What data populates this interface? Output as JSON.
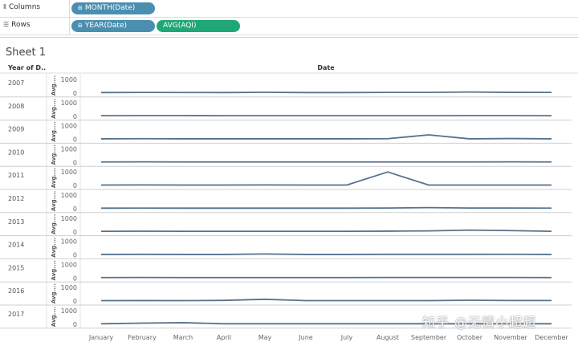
{
  "shelves": {
    "columns": {
      "label": "Columns",
      "pills": [
        {
          "text": "MONTH(Date)",
          "color": "#4a8fb0"
        }
      ]
    },
    "rows": {
      "label": "Rows",
      "pills": [
        {
          "text": "YEAR(Date)",
          "color": "#4a8fb0"
        },
        {
          "text": "AVG(AQI)",
          "color": "#1fa776"
        }
      ]
    }
  },
  "sheet_title": "Sheet 1",
  "watermark": "知乎 @无情小超超",
  "chart_data": {
    "type": "line",
    "row_header": "Year of D..",
    "column_header": "Date",
    "row_axis_label": "Avg....",
    "x": [
      "January",
      "February",
      "March",
      "April",
      "May",
      "June",
      "July",
      "August",
      "September",
      "October",
      "November",
      "December"
    ],
    "y_ticks": [
      0,
      1000
    ],
    "ylim": [
      0,
      1000
    ],
    "line_color": "#56728d",
    "series": [
      {
        "year": "2007",
        "values": [
          40,
          50,
          45,
          40,
          60,
          40,
          40,
          50,
          50,
          80,
          55,
          50
        ]
      },
      {
        "year": "2008",
        "values": [
          40,
          45,
          45,
          40,
          40,
          40,
          40,
          40,
          40,
          45,
          45,
          40
        ]
      },
      {
        "year": "2009",
        "values": [
          40,
          50,
          40,
          40,
          40,
          40,
          40,
          50,
          330,
          40,
          60,
          40
        ]
      },
      {
        "year": "2010",
        "values": [
          40,
          45,
          40,
          40,
          40,
          40,
          40,
          40,
          40,
          40,
          45,
          40
        ]
      },
      {
        "year": "2011",
        "values": [
          40,
          50,
          40,
          40,
          50,
          40,
          40,
          1000,
          40,
          40,
          40,
          40
        ]
      },
      {
        "year": "2012",
        "values": [
          40,
          45,
          40,
          40,
          40,
          40,
          40,
          50,
          80,
          50,
          50,
          45
        ]
      },
      {
        "year": "2013",
        "values": [
          40,
          45,
          40,
          40,
          40,
          40,
          40,
          50,
          70,
          130,
          90,
          40
        ]
      },
      {
        "year": "2014",
        "values": [
          40,
          45,
          40,
          40,
          70,
          40,
          40,
          45,
          45,
          45,
          50,
          40
        ]
      },
      {
        "year": "2015",
        "values": [
          40,
          45,
          40,
          40,
          40,
          40,
          40,
          45,
          45,
          45,
          45,
          40
        ]
      },
      {
        "year": "2016",
        "values": [
          40,
          45,
          40,
          60,
          140,
          40,
          40,
          40,
          40,
          70,
          50,
          50
        ]
      },
      {
        "year": "2017",
        "values": [
          40,
          90,
          120,
          40,
          40,
          40,
          40,
          40,
          40,
          40,
          40,
          40
        ]
      }
    ]
  }
}
